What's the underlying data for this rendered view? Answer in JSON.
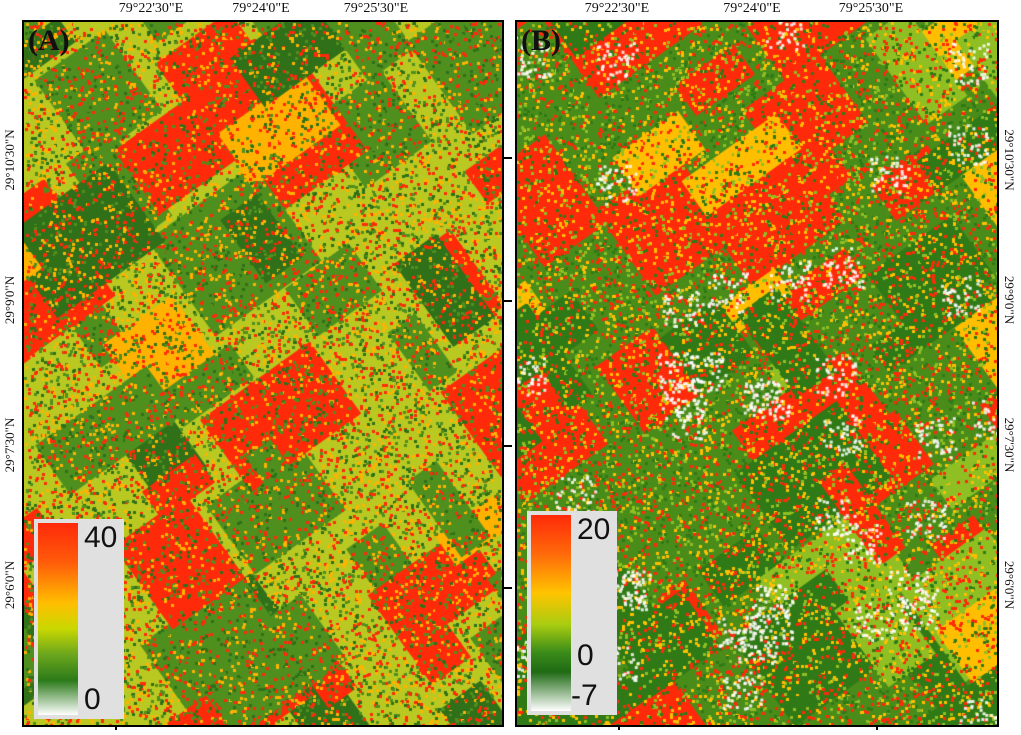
{
  "panels": [
    {
      "label": "(A)",
      "legend": {
        "max": "40",
        "min": "0"
      }
    },
    {
      "label": "(B)",
      "legend": {
        "max": "20",
        "mid": "0",
        "min": "-7"
      }
    }
  ],
  "longitudes": [
    "79°22'30\"E",
    "79°24'0\"E",
    "79°25'30\"E"
  ],
  "latitudes": [
    "29°10'30\"N",
    "29°9'0\"N",
    "29°7'30\"N",
    "29°6'0\"N"
  ],
  "colors": {
    "high": "#ff2a0a",
    "mid": "#ffbf00",
    "low": "#2b7a1a",
    "nodata": "#ffffff"
  }
}
